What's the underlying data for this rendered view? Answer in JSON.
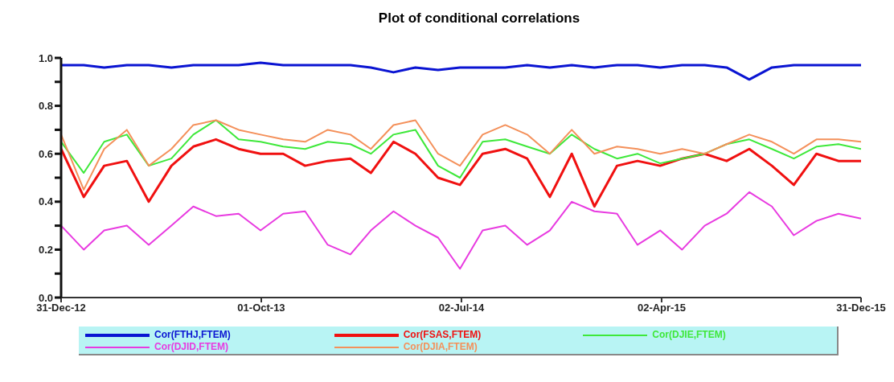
{
  "chart_data": {
    "type": "line",
    "title": "Plot of conditional correlations",
    "x": [
      "2012-12-31",
      "2013-01-31",
      "2013-02-28",
      "2013-03-31",
      "2013-04-30",
      "2013-05-31",
      "2013-06-30",
      "2013-07-31",
      "2013-08-31",
      "2013-09-30",
      "2013-10-31",
      "2013-11-30",
      "2013-12-31",
      "2014-01-31",
      "2014-02-28",
      "2014-03-31",
      "2014-04-30",
      "2014-05-31",
      "2014-06-30",
      "2014-07-31",
      "2014-08-31",
      "2014-09-30",
      "2014-10-31",
      "2014-11-30",
      "2014-12-31",
      "2015-01-31",
      "2015-02-28",
      "2015-03-31",
      "2015-04-30",
      "2015-05-31",
      "2015-06-30",
      "2015-07-31",
      "2015-08-31",
      "2015-09-30",
      "2015-10-31",
      "2015-11-30",
      "2015-12-31"
    ],
    "series": [
      {
        "name": "Cor(FTHJ,FTEM)",
        "color": "#0a14d2",
        "values": [
          0.97,
          0.97,
          0.96,
          0.97,
          0.97,
          0.96,
          0.97,
          0.97,
          0.97,
          0.98,
          0.97,
          0.97,
          0.97,
          0.97,
          0.96,
          0.94,
          0.96,
          0.95,
          0.96,
          0.96,
          0.96,
          0.97,
          0.96,
          0.97,
          0.96,
          0.97,
          0.97,
          0.96,
          0.97,
          0.97,
          0.96,
          0.91,
          0.96,
          0.97,
          0.97,
          0.97,
          0.97
        ]
      },
      {
        "name": "Cor(FSAS,FTEM)",
        "color": "#f01010",
        "values": [
          0.62,
          0.42,
          0.55,
          0.57,
          0.4,
          0.55,
          0.63,
          0.66,
          0.62,
          0.6,
          0.6,
          0.55,
          0.57,
          0.58,
          0.52,
          0.65,
          0.6,
          0.5,
          0.47,
          0.6,
          0.62,
          0.58,
          0.42,
          0.6,
          0.38,
          0.55,
          0.57,
          0.55,
          0.58,
          0.6,
          0.57,
          0.62,
          0.55,
          0.47,
          0.6,
          0.57,
          0.57
        ]
      },
      {
        "name": "Cor(DJIE,FTEM)",
        "color": "#3ee83a",
        "values": [
          0.65,
          0.52,
          0.65,
          0.68,
          0.55,
          0.58,
          0.68,
          0.74,
          0.66,
          0.65,
          0.63,
          0.62,
          0.65,
          0.64,
          0.6,
          0.68,
          0.7,
          0.55,
          0.5,
          0.65,
          0.66,
          0.63,
          0.6,
          0.68,
          0.62,
          0.58,
          0.6,
          0.56,
          0.58,
          0.6,
          0.64,
          0.66,
          0.62,
          0.58,
          0.63,
          0.64,
          0.62
        ]
      },
      {
        "name": "Cor(DJID,FTEM)",
        "color": "#e83ae0",
        "values": [
          0.3,
          0.2,
          0.28,
          0.3,
          0.22,
          0.3,
          0.38,
          0.34,
          0.35,
          0.28,
          0.35,
          0.36,
          0.22,
          0.18,
          0.28,
          0.36,
          0.3,
          0.25,
          0.12,
          0.28,
          0.3,
          0.22,
          0.28,
          0.4,
          0.36,
          0.35,
          0.22,
          0.28,
          0.2,
          0.3,
          0.35,
          0.44,
          0.38,
          0.26,
          0.32,
          0.35,
          0.33
        ]
      },
      {
        "name": "Cor(DJIA,FTEM)",
        "color": "#f4905a",
        "values": [
          0.68,
          0.45,
          0.62,
          0.7,
          0.55,
          0.62,
          0.72,
          0.74,
          0.7,
          0.68,
          0.66,
          0.65,
          0.7,
          0.68,
          0.62,
          0.72,
          0.74,
          0.6,
          0.55,
          0.68,
          0.72,
          0.68,
          0.6,
          0.7,
          0.6,
          0.63,
          0.62,
          0.6,
          0.62,
          0.6,
          0.64,
          0.68,
          0.65,
          0.6,
          0.66,
          0.66,
          0.65
        ]
      }
    ],
    "xlim": [
      "2012-12-31",
      "2015-12-31"
    ],
    "xticks": [
      {
        "value": "2012-12-31",
        "label": "31-Dec-12"
      },
      {
        "value": "2013-10-01",
        "label": "01-Oct-13"
      },
      {
        "value": "2014-07-02",
        "label": "02-Jul-14"
      },
      {
        "value": "2015-04-02",
        "label": "02-Apr-15"
      },
      {
        "value": "2015-12-31",
        "label": "31-Dec-15"
      }
    ],
    "ylim": [
      0,
      1
    ],
    "yticks": [
      {
        "value": 0,
        "label": "0.0"
      },
      {
        "value": 0.1,
        "label": null
      },
      {
        "value": 0.2,
        "label": "0.2"
      },
      {
        "value": 0.3,
        "label": null
      },
      {
        "value": 0.4,
        "label": "0.4"
      },
      {
        "value": 0.5,
        "label": null
      },
      {
        "value": 0.6,
        "label": "0.6"
      },
      {
        "value": 0.7,
        "label": null
      },
      {
        "value": 0.8,
        "label": "0.8"
      },
      {
        "value": 0.9,
        "label": null
      },
      {
        "value": 1,
        "label": "1.0"
      }
    ],
    "grid": false,
    "legend": "bottom",
    "marker": "none",
    "line_style": "solid"
  }
}
